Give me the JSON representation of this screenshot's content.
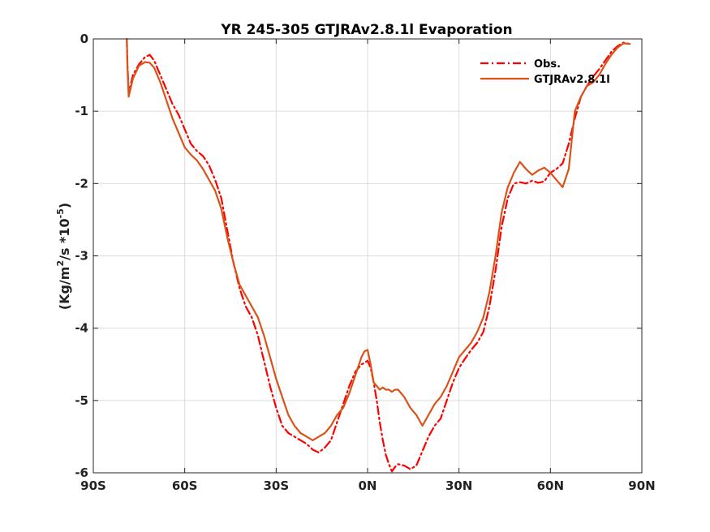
{
  "chart_data": {
    "type": "line",
    "title": "YR 245-305 GTJRAv2.8.1l Evaporation",
    "ylabel": "(Kg/m²/s *10⁻⁵)",
    "ylabel_parts": {
      "base": "(Kg/m",
      "sup1": "2",
      "mid": "/s *10",
      "sup2": "-5",
      "end": ")"
    },
    "xlim": [
      -90,
      90
    ],
    "ylim": [
      -6,
      0
    ],
    "x_ticks": [
      -90,
      -60,
      -30,
      0,
      30,
      60,
      90
    ],
    "x_tick_labels": [
      "90S",
      "60S",
      "30S",
      "0N",
      "30N",
      "60N",
      "90N"
    ],
    "y_ticks": [
      0,
      -1,
      -2,
      -3,
      -4,
      -5,
      -6
    ],
    "y_tick_labels": [
      "0",
      "-1",
      "-2",
      "-3",
      "-4",
      "-5",
      "-6"
    ],
    "grid": true,
    "legend_position": "top-right",
    "series": [
      {
        "name": "Obs.",
        "color": "#ff0000",
        "dash": "dashdot",
        "x": [
          -79,
          -78.8,
          -78.4,
          -77,
          -75,
          -73,
          -71.5,
          -70,
          -68,
          -66,
          -64,
          -62,
          -60,
          -58,
          -56,
          -54,
          -52,
          -50,
          -48,
          -46,
          -44,
          -42,
          -40,
          -38,
          -36,
          -34,
          -32,
          -30,
          -28,
          -26,
          -24,
          -22,
          -20,
          -18,
          -16,
          -14,
          -12,
          -10,
          -8,
          -6,
          -4,
          -2,
          -1,
          0,
          1,
          2,
          3,
          4,
          5,
          6,
          7,
          8,
          9,
          10,
          12,
          14,
          16,
          18,
          20,
          22,
          24,
          26,
          28,
          30,
          32,
          34,
          36,
          38,
          40,
          42,
          44,
          46,
          48,
          50,
          52,
          54,
          56,
          58,
          60,
          62,
          64,
          66,
          68,
          70,
          72,
          74,
          76,
          78,
          80,
          82,
          84,
          86
        ],
        "y": [
          0.0,
          -0.35,
          -0.75,
          -0.5,
          -0.35,
          -0.25,
          -0.22,
          -0.3,
          -0.5,
          -0.7,
          -0.9,
          -1.05,
          -1.25,
          -1.45,
          -1.55,
          -1.62,
          -1.75,
          -1.95,
          -2.2,
          -2.65,
          -3.1,
          -3.45,
          -3.7,
          -3.85,
          -4.1,
          -4.45,
          -4.8,
          -5.1,
          -5.35,
          -5.45,
          -5.5,
          -5.55,
          -5.6,
          -5.68,
          -5.72,
          -5.65,
          -5.55,
          -5.3,
          -5.05,
          -4.8,
          -4.6,
          -4.5,
          -4.48,
          -4.45,
          -4.55,
          -4.75,
          -5.0,
          -5.3,
          -5.55,
          -5.75,
          -5.88,
          -5.98,
          -5.92,
          -5.88,
          -5.9,
          -5.95,
          -5.9,
          -5.7,
          -5.5,
          -5.35,
          -5.25,
          -5.0,
          -4.75,
          -4.55,
          -4.42,
          -4.3,
          -4.2,
          -4.05,
          -3.7,
          -3.2,
          -2.6,
          -2.2,
          -2.0,
          -1.98,
          -2.0,
          -1.96,
          -1.99,
          -1.97,
          -1.85,
          -1.8,
          -1.72,
          -1.45,
          -1.1,
          -0.8,
          -0.65,
          -0.52,
          -0.42,
          -0.3,
          -0.18,
          -0.1,
          -0.05,
          -0.07
        ]
      },
      {
        "name": "GTJRAv2.8.1l",
        "color": "#d95319",
        "dash": "solid",
        "x": [
          -79,
          -78.8,
          -78.4,
          -77,
          -75,
          -73,
          -71.5,
          -70,
          -68,
          -66,
          -64,
          -62,
          -60,
          -58,
          -56,
          -54,
          -52,
          -50,
          -48,
          -46,
          -44,
          -42,
          -40,
          -38,
          -36,
          -34,
          -32,
          -30,
          -28,
          -26,
          -24,
          -22,
          -20,
          -18,
          -16,
          -14,
          -12,
          -10,
          -8,
          -6,
          -4,
          -2,
          -1,
          0,
          1,
          2,
          3,
          4,
          5,
          6,
          7,
          8,
          9,
          10,
          12,
          14,
          16,
          18,
          20,
          22,
          24,
          26,
          28,
          30,
          32,
          34,
          36,
          38,
          40,
          42,
          44,
          46,
          48,
          50,
          52,
          54,
          56,
          58,
          60,
          62,
          64,
          66,
          68,
          70,
          72,
          74,
          76,
          78,
          80,
          82,
          84,
          86
        ],
        "y": [
          0.0,
          -0.4,
          -0.8,
          -0.55,
          -0.37,
          -0.32,
          -0.33,
          -0.4,
          -0.6,
          -0.85,
          -1.1,
          -1.3,
          -1.5,
          -1.6,
          -1.68,
          -1.8,
          -1.95,
          -2.1,
          -2.35,
          -2.75,
          -3.1,
          -3.4,
          -3.55,
          -3.7,
          -3.85,
          -4.1,
          -4.4,
          -4.7,
          -4.95,
          -5.2,
          -5.35,
          -5.45,
          -5.5,
          -5.55,
          -5.5,
          -5.45,
          -5.35,
          -5.2,
          -5.1,
          -4.9,
          -4.65,
          -4.4,
          -4.32,
          -4.3,
          -4.5,
          -4.75,
          -4.8,
          -4.85,
          -4.82,
          -4.85,
          -4.85,
          -4.88,
          -4.85,
          -4.85,
          -4.95,
          -5.1,
          -5.2,
          -5.35,
          -5.2,
          -5.05,
          -4.95,
          -4.8,
          -4.6,
          -4.4,
          -4.3,
          -4.2,
          -4.05,
          -3.85,
          -3.5,
          -3.0,
          -2.4,
          -2.05,
          -1.85,
          -1.7,
          -1.8,
          -1.88,
          -1.82,
          -1.78,
          -1.85,
          -1.95,
          -2.05,
          -1.8,
          -1.0,
          -0.8,
          -0.65,
          -0.6,
          -0.5,
          -0.35,
          -0.22,
          -0.12,
          -0.06,
          -0.07
        ]
      }
    ]
  }
}
